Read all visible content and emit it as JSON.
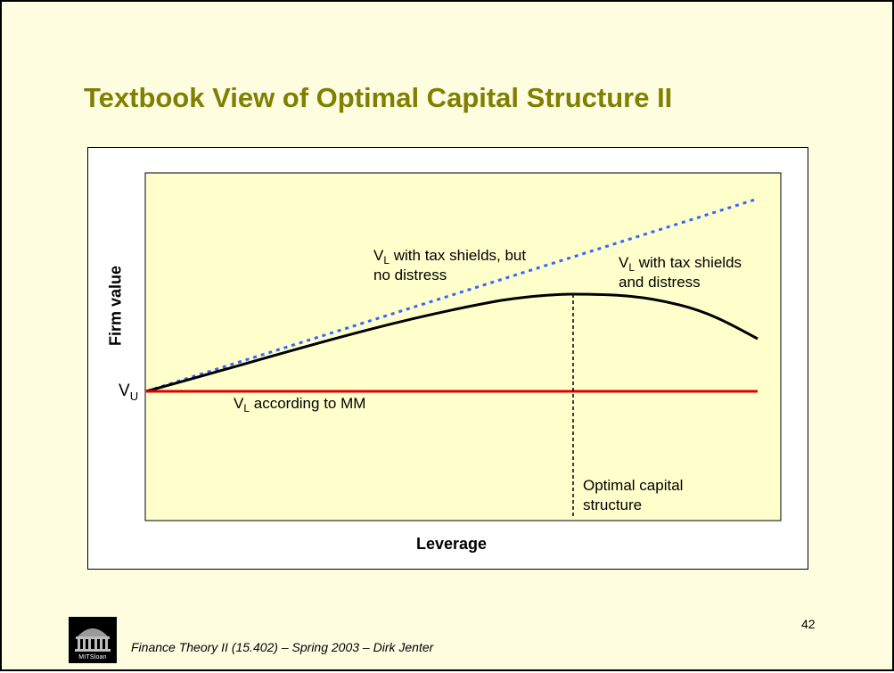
{
  "slide": {
    "title": "Textbook View of Optimal Capital Structure II",
    "page_number": "42",
    "footer": "Finance Theory II (15.402) – Spring 2003 – Dirk Jenter",
    "logo_text": "MITSloan"
  },
  "diagram": {
    "y_axis_label": "Firm value",
    "x_axis_label": "Leverage",
    "vu": {
      "main": "V",
      "sub": "U"
    },
    "labels": {
      "tax_shields_no_distress": {
        "main": "V",
        "sub": "L",
        "line1": " with tax shields, but",
        "line2": "no distress"
      },
      "tax_shields_and_distress": {
        "main": "V",
        "sub": "L",
        "line1": " with tax shields",
        "line2": "and distress"
      },
      "according_to_mm": {
        "main": "V",
        "sub": "L",
        "line1": " according to MM"
      },
      "optimal": {
        "line1": "Optimal capital",
        "line2": "structure"
      }
    },
    "colors": {
      "plot_background": "#ffffcc",
      "mm_line": "#e00000",
      "tax_shield_line": "#3366ff",
      "distress_curve": "#000000",
      "title": "#7f7f00"
    }
  }
}
